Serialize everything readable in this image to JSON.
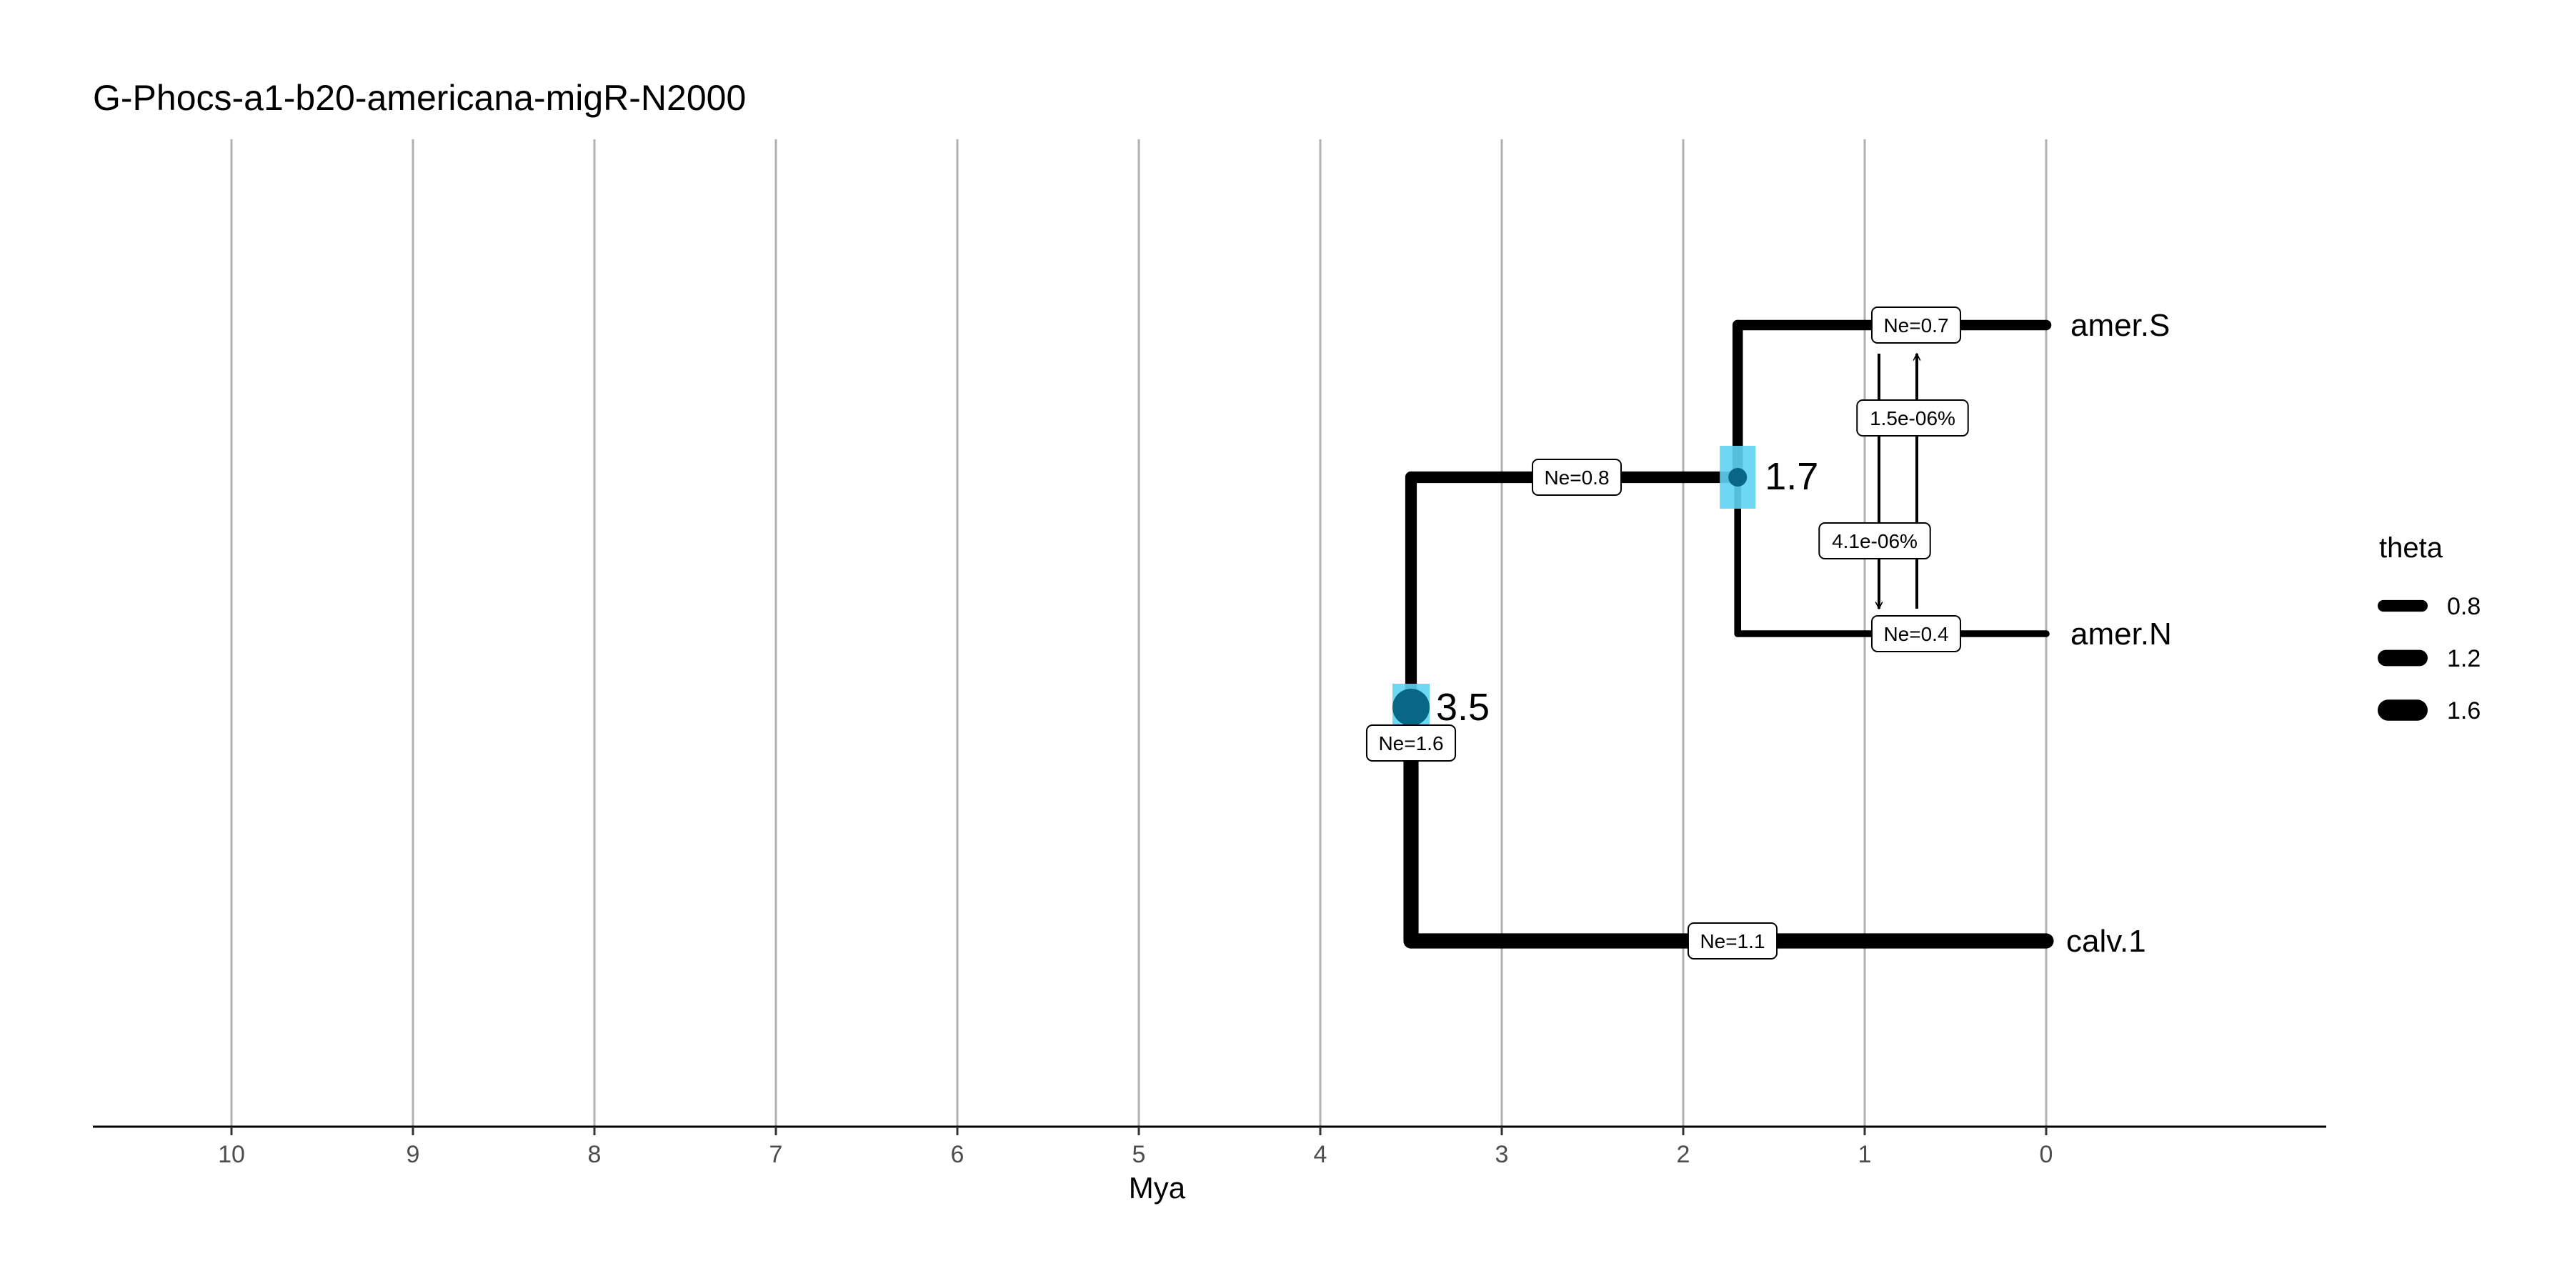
{
  "chart_data": {
    "type": "tree",
    "title": "G-Phocs-a1-b20-americana-migR-N2000",
    "xlabel": "Mya",
    "xlim": [
      10,
      0
    ],
    "x_ticks": [
      10,
      9,
      8,
      7,
      6,
      5,
      4,
      3,
      2,
      1,
      0
    ],
    "grid": "vertical",
    "tips": [
      {
        "name": "amer.S",
        "ne": "Ne=0.7",
        "theta": 0.7
      },
      {
        "name": "amer.N",
        "ne": "Ne=0.4",
        "theta": 0.4
      },
      {
        "name": "calv.1",
        "ne": "Ne=1.1",
        "theta": 1.1
      }
    ],
    "nodes": [
      {
        "age": 1.7,
        "label": "1.7",
        "ne": "Ne=0.8",
        "theta": 0.8,
        "children": [
          "amer.S",
          "amer.N"
        ]
      },
      {
        "age": 3.5,
        "label": "3.5",
        "ne": "Ne=1.6",
        "theta": 1.6,
        "children": [
          "1.7",
          "calv.1"
        ]
      }
    ],
    "migration": [
      {
        "from": "amer.S",
        "to": "amer.N",
        "label": "4.1e-06%"
      },
      {
        "from": "amer.N",
        "to": "amer.S",
        "label": "1.5e-06%"
      }
    ],
    "legend": {
      "title": "theta",
      "position": "right",
      "entries": [
        0.8,
        1.2,
        1.6
      ],
      "labels": [
        "0.8",
        "1.2",
        "1.6"
      ]
    },
    "colors": {
      "node": "#0a6685",
      "node_hpd": "#5dd3f3",
      "branch": "#000000",
      "grid": "#b0b0b0"
    }
  }
}
